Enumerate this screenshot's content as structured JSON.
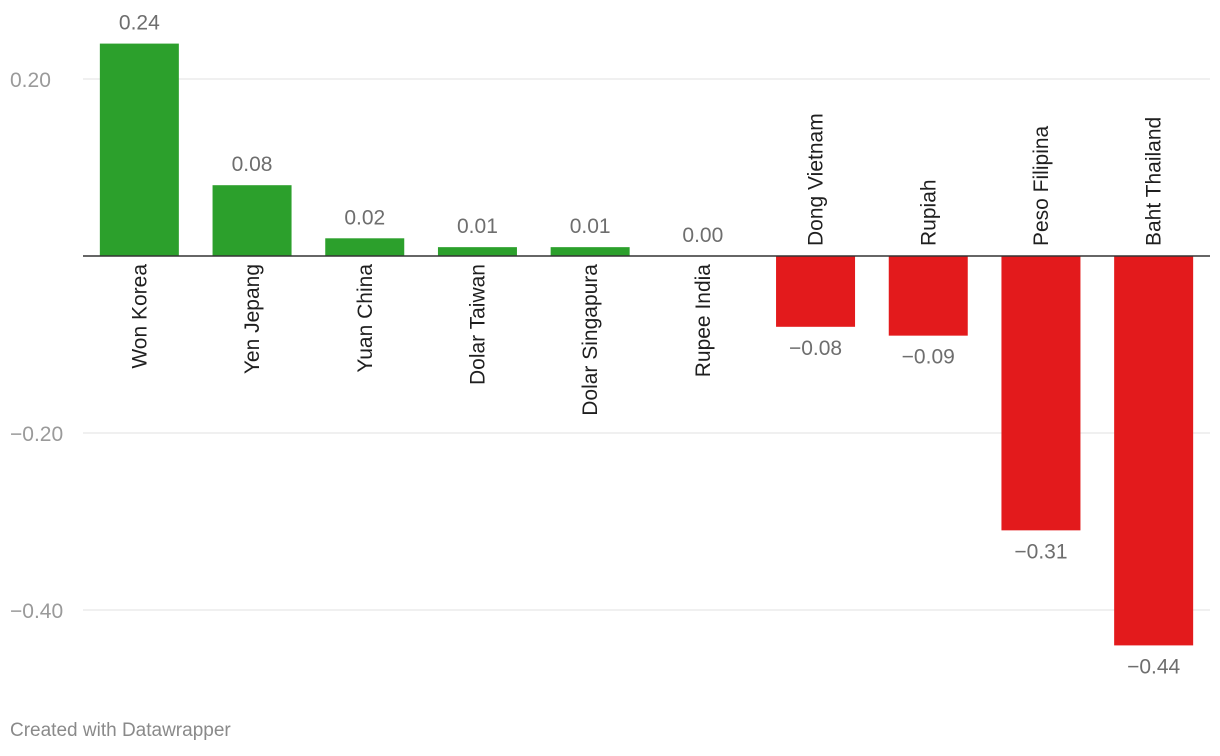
{
  "chart_data": {
    "type": "bar",
    "categories": [
      "Won Korea",
      "Yen Jepang",
      "Yuan China",
      "Dolar Taiwan",
      "Dolar Singapura",
      "Rupee India",
      "Dong Vietnam",
      "Rupiah",
      "Peso Filipina",
      "Baht Thailand"
    ],
    "values": [
      0.24,
      0.08,
      0.02,
      0.01,
      0.01,
      0.0,
      -0.08,
      -0.09,
      -0.31,
      -0.44
    ],
    "value_labels": [
      "0.24",
      "0.08",
      "0.02",
      "0.01",
      "0.01",
      "0.00",
      "−0.08",
      "−0.09",
      "−0.31",
      "−0.44"
    ],
    "y_ticks": [
      {
        "value": 0.2,
        "label": "0.20"
      },
      {
        "value": -0.2,
        "label": "−0.20"
      },
      {
        "value": -0.4,
        "label": "−0.40"
      }
    ],
    "ylim": [
      -0.5,
      0.27
    ],
    "grid": true,
    "colors": {
      "positive": "#2ca02c",
      "negative": "#e31a1c",
      "grid": "#e2e2e2",
      "baseline": "#333333"
    },
    "title": "",
    "xlabel": "",
    "ylabel": ""
  },
  "footer": {
    "credit": "Created with Datawrapper"
  }
}
